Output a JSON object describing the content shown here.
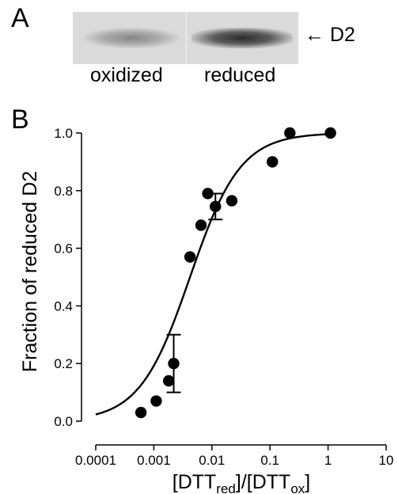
{
  "panel_a": {
    "letter": "A",
    "lanes": [
      "oxidized",
      "reduced"
    ],
    "band_label": "D2",
    "arrow_glyph": "←"
  },
  "panel_b": {
    "letter": "B"
  },
  "chart_data": {
    "type": "scatter",
    "xlabel": {
      "prefix": "[DTT",
      "sub1": "red",
      "mid": "]/[DTT",
      "sub2": "ox",
      "suffix": "]"
    },
    "ylabel": "Fraction of reduced D2",
    "x_scale": "log",
    "xlim": [
      0.0001,
      10
    ],
    "ylim": [
      0.0,
      1.0
    ],
    "x_ticks": [
      {
        "value": 0.0001,
        "label": "0.0001"
      },
      {
        "value": 0.001,
        "label": "0.001"
      },
      {
        "value": 0.01,
        "label": "0.01"
      },
      {
        "value": 0.1,
        "label": "0.1"
      },
      {
        "value": 1,
        "label": "1"
      },
      {
        "value": 10,
        "label": "10"
      }
    ],
    "y_ticks": [
      {
        "value": 0.0,
        "label": "0.0"
      },
      {
        "value": 0.2,
        "label": "0.2"
      },
      {
        "value": 0.4,
        "label": "0.4"
      },
      {
        "value": 0.6,
        "label": "0.6"
      },
      {
        "value": 0.8,
        "label": "0.8"
      },
      {
        "value": 1.0,
        "label": "1.0"
      }
    ],
    "grid": false,
    "points": [
      {
        "x": 0.0006,
        "y": 0.03
      },
      {
        "x": 0.0011,
        "y": 0.07
      },
      {
        "x": 0.0018,
        "y": 0.14
      },
      {
        "x": 0.0022,
        "y": 0.2,
        "yerr": 0.1
      },
      {
        "x": 0.0042,
        "y": 0.57
      },
      {
        "x": 0.0065,
        "y": 0.68
      },
      {
        "x": 0.0085,
        "y": 0.79
      },
      {
        "x": 0.0115,
        "y": 0.745,
        "yerr": 0.045
      },
      {
        "x": 0.022,
        "y": 0.765
      },
      {
        "x": 0.11,
        "y": 0.9
      },
      {
        "x": 0.22,
        "y": 1.0
      },
      {
        "x": 1.1,
        "y": 1.0
      }
    ],
    "fit_curve": {
      "model": "hill",
      "midpoint": 0.0042,
      "slope": 1.0
    }
  }
}
